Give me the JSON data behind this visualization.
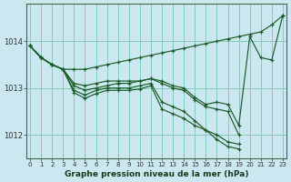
{
  "xlabel": "Graphe pression niveau de la mer (hPa)",
  "bg_color": "#cbe8f0",
  "grid_color": "#88ccbb",
  "line_color": "#1a5c28",
  "ylim": [
    1011.5,
    1014.8
  ],
  "xlim": [
    -0.3,
    23.3
  ],
  "xticks": [
    0,
    1,
    2,
    3,
    4,
    5,
    6,
    7,
    8,
    9,
    10,
    11,
    12,
    13,
    14,
    15,
    16,
    17,
    18,
    19,
    20,
    21,
    22,
    23
  ],
  "yticks": [
    1012,
    1013,
    1014
  ],
  "series": [
    [
      1013.9,
      1013.65,
      1013.5,
      1013.4,
      1013.4,
      1013.4,
      1013.45,
      1013.5,
      1013.55,
      1013.6,
      1013.65,
      1013.7,
      1013.75,
      1013.8,
      1013.85,
      1013.9,
      1013.95,
      1014.0,
      1014.05,
      1014.1,
      1014.15,
      1014.2,
      1014.35,
      1014.55
    ],
    [
      1013.9,
      1013.65,
      1013.5,
      1013.4,
      1013.05,
      1012.95,
      1013.0,
      1013.05,
      1013.1,
      1013.1,
      1013.15,
      1013.2,
      1013.15,
      1013.05,
      1013.0,
      1012.8,
      1012.65,
      1012.7,
      1012.65,
      1012.2,
      1014.1,
      1013.65,
      1013.6,
      1014.55
    ],
    [
      1013.9,
      1013.65,
      1013.5,
      1013.4,
      1012.95,
      1012.85,
      1012.95,
      1013.0,
      1013.0,
      1013.0,
      1013.05,
      1013.1,
      1012.7,
      1012.6,
      1012.5,
      1012.3,
      1012.1,
      1012.0,
      1011.85,
      1011.8,
      null,
      null,
      null,
      null
    ],
    [
      1013.9,
      1013.65,
      1013.5,
      1013.4,
      1012.9,
      1012.78,
      1012.88,
      1012.95,
      1012.95,
      1012.95,
      1012.98,
      1013.05,
      1012.55,
      1012.45,
      1012.35,
      1012.2,
      1012.1,
      1011.9,
      1011.75,
      1011.7,
      null,
      null,
      null,
      null
    ],
    [
      1013.9,
      1013.65,
      1013.5,
      1013.4,
      1013.1,
      1013.05,
      1013.1,
      1013.15,
      1013.15,
      1013.15,
      1013.15,
      1013.2,
      1013.1,
      1013.0,
      1012.95,
      1012.75,
      1012.6,
      1012.55,
      1012.5,
      1012.0,
      null,
      null,
      null,
      null
    ]
  ]
}
